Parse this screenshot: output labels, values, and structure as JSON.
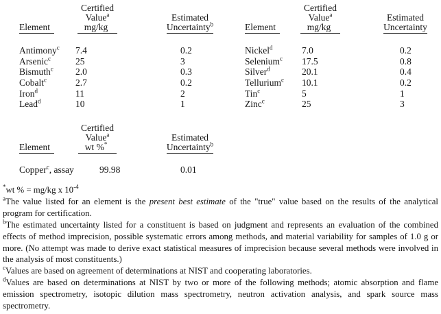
{
  "document": {
    "background": "#ffffff",
    "text_color": "#141414"
  },
  "table_top_left": {
    "headers": {
      "element": "Element",
      "value_l1": "Certified",
      "value_l2": "Value",
      "value_l2_sup": "a",
      "value_l3": "mg/kg",
      "unc_l1": "Estimated",
      "unc_l2": "Uncertainty",
      "unc_l2_sup": "b"
    },
    "rows": [
      {
        "element": "Antimony",
        "sup": "c",
        "value": "7.4",
        "uncertainty": "0.2"
      },
      {
        "element": "Arsenic",
        "sup": "c",
        "value": "25",
        "uncertainty": "3"
      },
      {
        "element": "Bismuth",
        "sup": "c",
        "value": "2.0",
        "uncertainty": "0.3"
      },
      {
        "element": "Cobalt",
        "sup": "c",
        "value": "2.7",
        "uncertainty": "0.2"
      },
      {
        "element": "Iron",
        "sup": "d",
        "value": "11",
        "uncertainty": "2"
      },
      {
        "element": "Lead",
        "sup": "d",
        "value": "10",
        "uncertainty": "1"
      }
    ]
  },
  "table_top_right": {
    "headers": {
      "element": "Element",
      "value_l1": "Certified",
      "value_l2": "Value",
      "value_l2_sup": "a",
      "value_l3": "mg/kg",
      "unc_l1": "Estimated",
      "unc_l2": "Uncertainty"
    },
    "rows": [
      {
        "element": "Nickel",
        "sup": "d",
        "value": "7.0",
        "uncertainty": "0.2"
      },
      {
        "element": "Selenium",
        "sup": "c",
        "value": "17.5",
        "uncertainty": "0.8"
      },
      {
        "element": "Silver",
        "sup": "d",
        "value": "20.1",
        "uncertainty": "0.4"
      },
      {
        "element": "Tellurium",
        "sup": "c",
        "value": "10.1",
        "uncertainty": "0.2"
      },
      {
        "element": "Tin",
        "sup": "c",
        "value": "5",
        "uncertainty": "1"
      },
      {
        "element": "Zinc",
        "sup": "c",
        "value": "25",
        "uncertainty": "3"
      }
    ]
  },
  "table_assay": {
    "headers": {
      "element": "Element",
      "value_l1": "Certified",
      "value_l2": "Value",
      "value_l2_sup": "a",
      "value_l3": "wt %",
      "value_l3_sup": "*",
      "unc_l1": "Estimated",
      "unc_l2": "Uncertainty",
      "unc_l2_sup": "b"
    },
    "row": {
      "element": "Copper",
      "sup": "c",
      "suffix": ", assay",
      "value": "99.98",
      "uncertainty": "0.01"
    }
  },
  "footnotes": {
    "wt": {
      "marker": "*",
      "text": "wt % = mg/kg x 10",
      "exponent": "-4"
    },
    "a": {
      "marker": "a",
      "pre": "The value listed for an element is the ",
      "italic": "present best estimate",
      "post": " of the \"true\" value based on the results of the analytical program for certification."
    },
    "b": {
      "marker": "b",
      "text": "The estimated uncertainty listed for a constituent is based on judgment and represents an evaluation of the combined effects of method imprecision, possible systematic errors among methods, and material variability for samples of 1.0 g or more.  (No attempt was made to derive exact statistical measures of imprecision because several methods were involved in the analysis of most constituents.)"
    },
    "c": {
      "marker": "c",
      "text": "Values are based on agreement of determinations at NIST and cooperating laboratories."
    },
    "d": {
      "marker": "d",
      "text": "Values are based on determinations at NIST by two or more of the following methods; atomic absorption and flame emission spectrometry, isotopic dilution mass spectrometry, neutron activation analysis, and spark source mass spectrometry."
    }
  }
}
